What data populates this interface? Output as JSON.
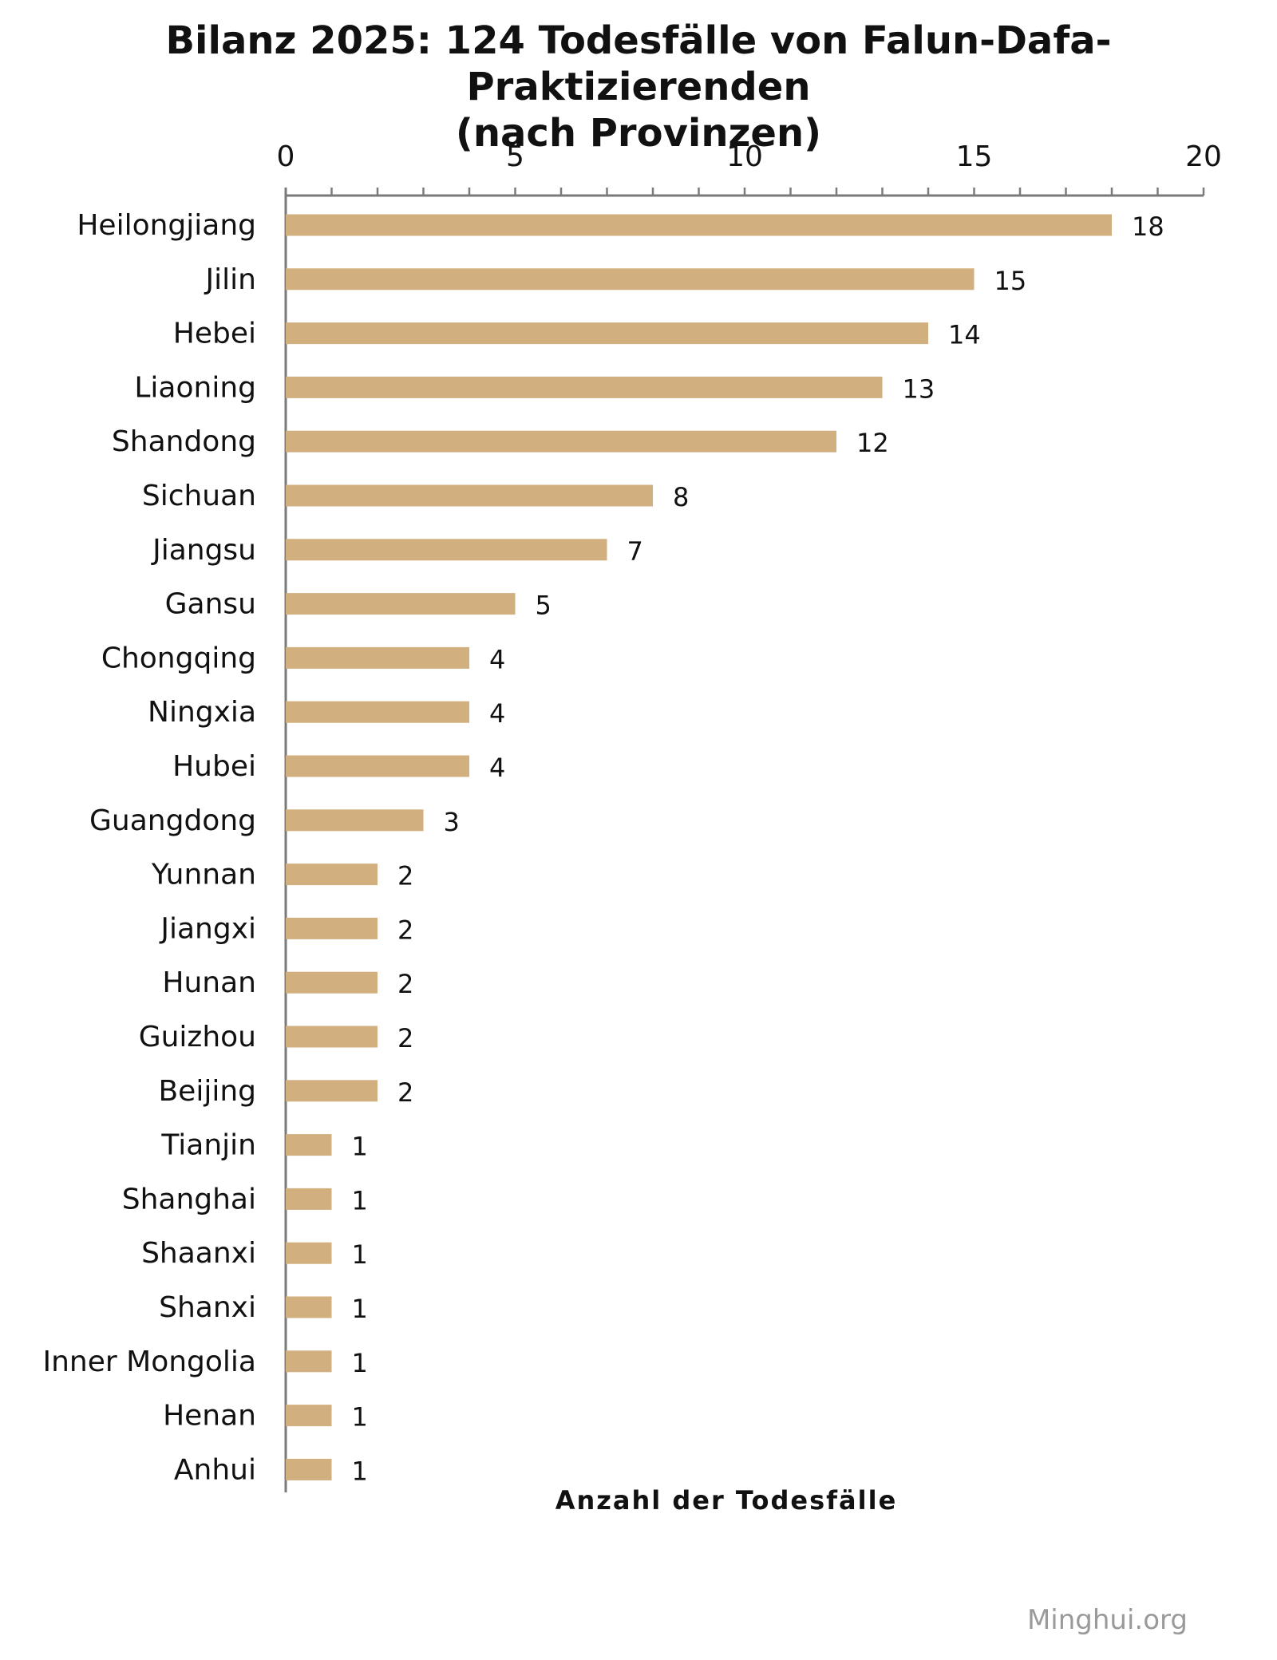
{
  "chart_data": {
    "type": "bar",
    "orientation": "horizontal",
    "title_line1": "Bilanz 2025: 124 Todesfälle von Falun-Dafa-Praktizierenden",
    "title_line2": "(nach Provinzen)",
    "xlabel": "Anzahl der Todesfälle",
    "ylabel": "",
    "xlim": [
      0,
      20
    ],
    "major_ticks": [
      0,
      5,
      10,
      15,
      20
    ],
    "minor_step": 1,
    "x_axis_position": "top",
    "grid": false,
    "legend": "none",
    "bar_color": "#d2af7e",
    "categories": [
      "Heilongjiang",
      "Jilin",
      "Hebei",
      "Liaoning",
      "Shandong",
      "Sichuan",
      "Jiangsu",
      "Gansu",
      "Chongqing",
      "Ningxia",
      "Hubei",
      "Guangdong",
      "Yunnan",
      "Jiangxi",
      "Hunan",
      "Guizhou",
      "Beijing",
      "Tianjin",
      "Shanghai",
      "Shaanxi",
      "Shanxi",
      "Inner Mongolia",
      "Henan",
      "Anhui"
    ],
    "values": [
      18,
      15,
      14,
      13,
      12,
      8,
      7,
      5,
      4,
      4,
      4,
      3,
      2,
      2,
      2,
      2,
      2,
      1,
      1,
      1,
      1,
      1,
      1,
      1
    ]
  },
  "watermark": "Minghui.org"
}
